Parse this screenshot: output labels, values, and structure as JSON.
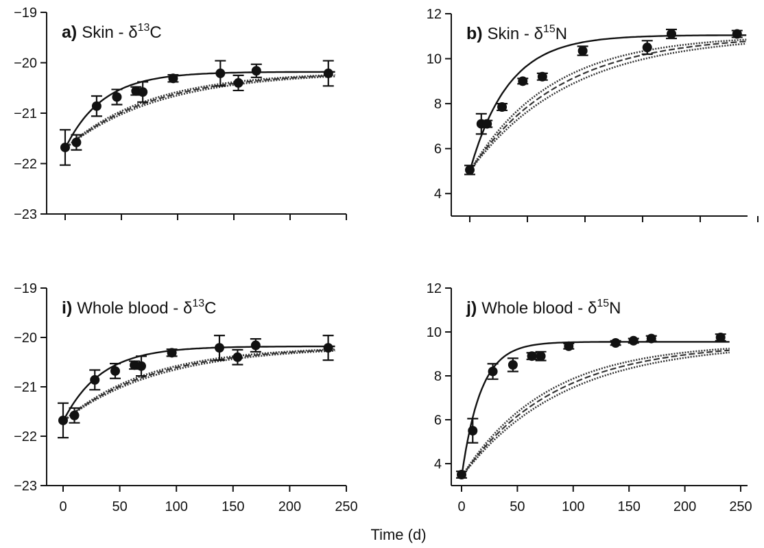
{
  "figure": {
    "xlabel": "Time (d)"
  },
  "chart_data": [
    {
      "type": "scatter",
      "panel_letter": "a)",
      "panel_title": "Skin - δ13C",
      "panel_title_parts": {
        "text": "Skin - δ",
        "sup": "13",
        "after": "C"
      },
      "xlim": [
        0,
        250
      ],
      "ylim": [
        -23,
        -19
      ],
      "yticks": [
        -19,
        -20,
        -21,
        -22,
        -23
      ],
      "ytick_labels": [
        "−19",
        "−20",
        "−21",
        "−22",
        "−23"
      ],
      "xticks": [
        0,
        50,
        100,
        150,
        200,
        250
      ],
      "xtick_labels": [],
      "points": [
        {
          "x": 0,
          "y": -21.68,
          "err": 0.35
        },
        {
          "x": 10,
          "y": -21.58,
          "err": 0.15
        },
        {
          "x": 28,
          "y": -20.86,
          "err": 0.2
        },
        {
          "x": 46,
          "y": -20.68,
          "err": 0.15
        },
        {
          "x": 63,
          "y": -20.56,
          "err": 0.08
        },
        {
          "x": 69,
          "y": -20.58,
          "err": 0.2
        },
        {
          "x": 96,
          "y": -20.31,
          "err": 0.07
        },
        {
          "x": 138,
          "y": -20.21,
          "err": 0.25
        },
        {
          "x": 154,
          "y": -20.4,
          "err": 0.15
        },
        {
          "x": 170,
          "y": -20.16,
          "err": 0.13
        },
        {
          "x": 234,
          "y": -20.21,
          "err": 0.25
        }
      ],
      "fit_line": {
        "y0": -21.7,
        "yinf": -20.18,
        "k": 0.03
      },
      "model_lines": [
        {
          "y0": -21.7,
          "yinf": -20.18,
          "k": 0.0118
        },
        {
          "y0": -21.7,
          "yinf": -20.18,
          "k": 0.0126
        },
        {
          "y0": -21.7,
          "yinf": -20.18,
          "k": 0.0134
        }
      ]
    },
    {
      "type": "scatter",
      "panel_letter": "b)",
      "panel_title": "Skin - δ15N",
      "panel_title_parts": {
        "text": "Skin - δ",
        "sup": "15",
        "after": "N"
      },
      "xlim": [
        0,
        250
      ],
      "ylim": [
        3,
        12
      ],
      "yticks": [
        4,
        6,
        8,
        10,
        12
      ],
      "ytick_labels": [
        "4",
        "6",
        "8",
        "10",
        "12"
      ],
      "xticks": [
        0,
        50,
        100,
        150,
        200,
        250
      ],
      "xtick_labels": [],
      "points": [
        {
          "x": 0,
          "y": 5.05,
          "err": 0.2
        },
        {
          "x": 10,
          "y": 7.1,
          "err": 0.45
        },
        {
          "x": 15,
          "y": 7.1,
          "err": 0.15
        },
        {
          "x": 28,
          "y": 7.85,
          "err": 0.15
        },
        {
          "x": 46,
          "y": 9.0,
          "err": 0.12
        },
        {
          "x": 63,
          "y": 9.2,
          "err": 0.15
        },
        {
          "x": 98,
          "y": 10.35,
          "err": 0.2
        },
        {
          "x": 154,
          "y": 10.5,
          "err": 0.3
        },
        {
          "x": 175,
          "y": 11.1,
          "err": 0.2
        },
        {
          "x": 232,
          "y": 11.1,
          "err": 0.15
        }
      ],
      "fit_line": {
        "y0": 5.0,
        "yinf": 11.05,
        "k": 0.03
      },
      "model_lines": [
        {
          "y0": 5.0,
          "yinf": 11.05,
          "k": 0.0115
        },
        {
          "y0": 5.0,
          "yinf": 11.05,
          "k": 0.0128
        },
        {
          "y0": 5.0,
          "yinf": 11.05,
          "k": 0.0142
        }
      ]
    },
    {
      "type": "scatter",
      "panel_letter": "i)",
      "panel_title": "Whole blood - δ13C",
      "panel_title_parts": {
        "text": "Whole blood - δ",
        "sup": "13",
        "after": "C"
      },
      "xlim": [
        0,
        250
      ],
      "ylim": [
        -23,
        -19
      ],
      "yticks": [
        -19,
        -20,
        -21,
        -22,
        -23
      ],
      "ytick_labels": [
        "−19",
        "−20",
        "−21",
        "−22",
        "−23"
      ],
      "xticks": [
        0,
        50,
        100,
        150,
        200,
        250
      ],
      "xtick_labels": [
        "0",
        "50",
        "100",
        "150",
        "200",
        "250"
      ],
      "points": [
        {
          "x": 0,
          "y": -21.68,
          "err": 0.35
        },
        {
          "x": 10,
          "y": -21.58,
          "err": 0.15
        },
        {
          "x": 28,
          "y": -20.86,
          "err": 0.2
        },
        {
          "x": 46,
          "y": -20.68,
          "err": 0.15
        },
        {
          "x": 63,
          "y": -20.56,
          "err": 0.08
        },
        {
          "x": 69,
          "y": -20.58,
          "err": 0.2
        },
        {
          "x": 96,
          "y": -20.31,
          "err": 0.07
        },
        {
          "x": 138,
          "y": -20.21,
          "err": 0.25
        },
        {
          "x": 154,
          "y": -20.4,
          "err": 0.15
        },
        {
          "x": 170,
          "y": -20.16,
          "err": 0.13
        },
        {
          "x": 234,
          "y": -20.21,
          "err": 0.25
        }
      ],
      "fit_line": {
        "y0": -21.7,
        "yinf": -20.18,
        "k": 0.03
      },
      "model_lines": [
        {
          "y0": -21.7,
          "yinf": -20.18,
          "k": 0.0118
        },
        {
          "y0": -21.7,
          "yinf": -20.18,
          "k": 0.0126
        },
        {
          "y0": -21.7,
          "yinf": -20.18,
          "k": 0.0134
        }
      ]
    },
    {
      "type": "scatter",
      "panel_letter": "j)",
      "panel_title": "Whole blood - δ15N",
      "panel_title_parts": {
        "text": "Whole blood - δ",
        "sup": "15",
        "after": "N"
      },
      "xlim": [
        0,
        250
      ],
      "ylim": [
        3,
        12
      ],
      "yticks": [
        4,
        6,
        8,
        10,
        12
      ],
      "ytick_labels": [
        "4",
        "6",
        "8",
        "10",
        "12"
      ],
      "xticks": [
        0,
        50,
        100,
        150,
        200,
        250
      ],
      "xtick_labels": [
        "0",
        "50",
        "100",
        "150",
        "200",
        "250"
      ],
      "points": [
        {
          "x": 0,
          "y": 3.5,
          "err": 0.15
        },
        {
          "x": 10,
          "y": 5.5,
          "err": 0.55
        },
        {
          "x": 28,
          "y": 8.2,
          "err": 0.35
        },
        {
          "x": 46,
          "y": 8.5,
          "err": 0.3
        },
        {
          "x": 63,
          "y": 8.9,
          "err": 0.15
        },
        {
          "x": 71,
          "y": 8.9,
          "err": 0.2
        },
        {
          "x": 96,
          "y": 9.35,
          "err": 0.12
        },
        {
          "x": 138,
          "y": 9.5,
          "err": 0.1
        },
        {
          "x": 154,
          "y": 9.6,
          "err": 0.1
        },
        {
          "x": 170,
          "y": 9.7,
          "err": 0.12
        },
        {
          "x": 232,
          "y": 9.75,
          "err": 0.15
        }
      ],
      "fit_line": {
        "y0": 3.4,
        "yinf": 9.55,
        "k": 0.058
      },
      "model_lines": [
        {
          "y0": 3.4,
          "yinf": 9.5,
          "k": 0.011
        },
        {
          "y0": 3.4,
          "yinf": 9.5,
          "k": 0.0121
        },
        {
          "y0": 3.4,
          "yinf": 9.5,
          "k": 0.0132
        }
      ]
    }
  ]
}
